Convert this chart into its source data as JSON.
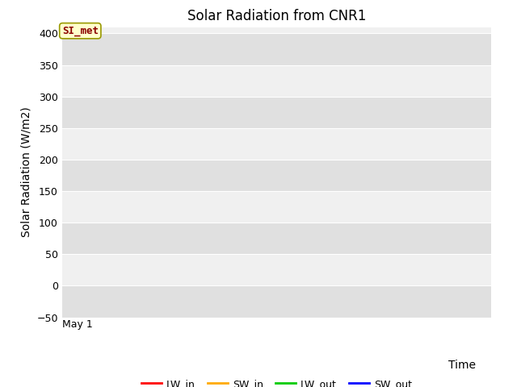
{
  "title": "Solar Radiation from CNR1",
  "xlabel": "Time",
  "ylabel": "Solar Radiation (W/m2)",
  "ylim": [
    -50,
    410
  ],
  "yticks": [
    -50,
    0,
    50,
    100,
    150,
    200,
    250,
    300,
    350,
    400
  ],
  "xlim": [
    0,
    1
  ],
  "xtick_labels": [
    "May 1"
  ],
  "annotation_text": "SI_met",
  "legend_entries": [
    {
      "label": "LW_in",
      "color": "#ff0000"
    },
    {
      "label": "SW_in",
      "color": "#ffaa00"
    },
    {
      "label": "LW_out",
      "color": "#00cc00"
    },
    {
      "label": "SW_out",
      "color": "#0000ff"
    }
  ],
  "plot_bg_color": "#f0f0f0",
  "band_color": "#e0e0e0",
  "fig_bg_color": "#ffffff",
  "grid_color": "#ffffff",
  "title_fontsize": 12,
  "axis_label_fontsize": 10,
  "tick_fontsize": 9,
  "legend_fontsize": 9
}
